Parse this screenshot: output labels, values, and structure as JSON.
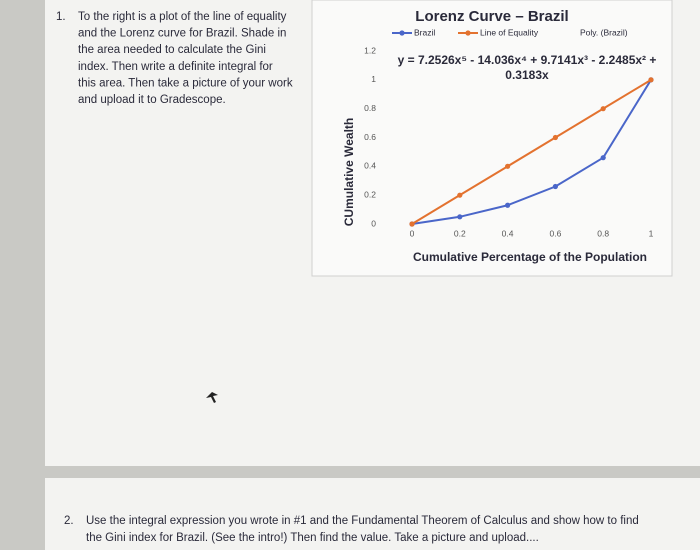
{
  "question1": {
    "number": "1.",
    "lines": [
      "To the right is a plot of the line of equality",
      "and the Lorenz curve for Brazil.  Shade in",
      "the area needed to calculate the Gini",
      "index.  Then write a definite integral for",
      "this area.  Then take a picture of your work",
      "and upload it to Gradescope."
    ]
  },
  "chart_data": {
    "type": "line",
    "title": "Lorenz Curve –  Brazil",
    "x_label": "Cumulative Percentage of the Population",
    "y_label": "CUmulative Wealth",
    "x": [
      0,
      0.2,
      0.4,
      0.6,
      0.8,
      1
    ],
    "series": [
      {
        "name": "Brazil",
        "color": "#4a66c9",
        "values": [
          0,
          0.05,
          0.13,
          0.26,
          0.46,
          1
        ]
      },
      {
        "name": "Line of Equality",
        "color": "#e3722f",
        "values": [
          0,
          0.2,
          0.4,
          0.6,
          0.8,
          1
        ]
      }
    ],
    "trendline": {
      "name": "Poly. (Brazil)",
      "equation_lines": [
        "y = 7.2526x⁵ - 14.036x⁴ + 9.7141x³ - 2.2485x² +",
        "0.3183x"
      ]
    },
    "xlim": [
      0,
      1
    ],
    "xticks": [
      0,
      0.2,
      0.4,
      0.6,
      0.8,
      1
    ],
    "ylim": [
      0,
      1.2
    ],
    "yticks": [
      0,
      0.2,
      0.4,
      0.6,
      0.8,
      1,
      1.2
    ],
    "grid": false
  },
  "question2": {
    "number": "2.",
    "lines": [
      "Use the integral expression you wrote in #1 and the Fundamental Theorem of Calculus and show how to find",
      "the Gini index for Brazil. (See the intro!)  Then find the value. Take a picture and upload...."
    ]
  }
}
